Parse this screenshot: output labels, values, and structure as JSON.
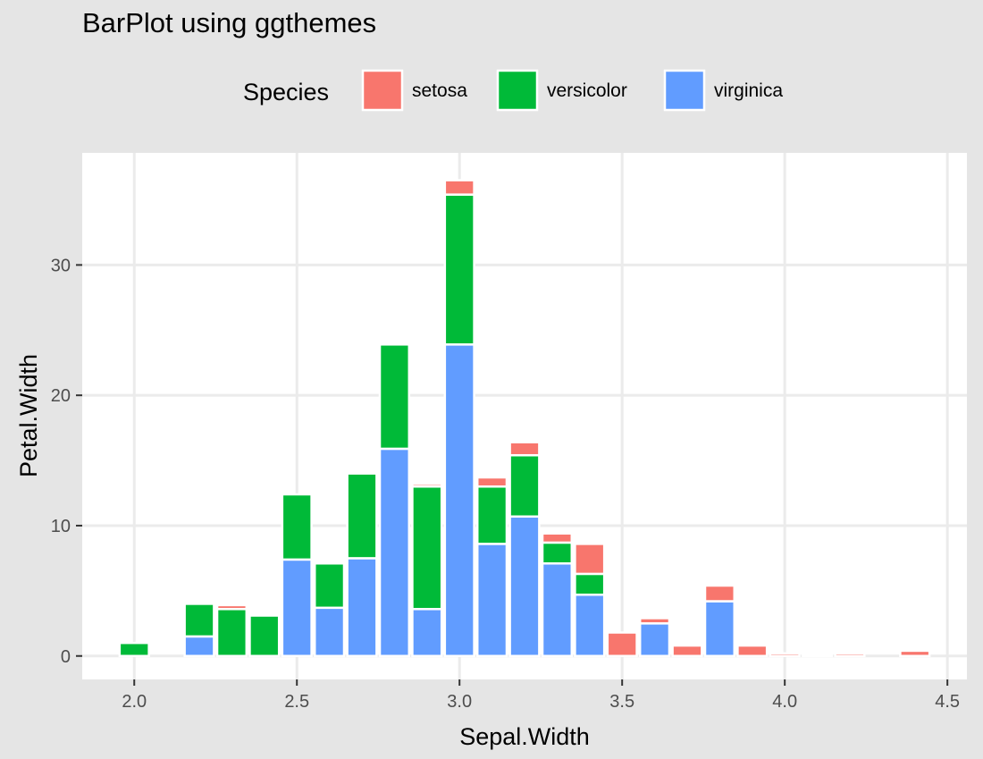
{
  "chart_data": {
    "type": "bar",
    "stacked": true,
    "title": "BarPlot using ggthemes",
    "xlabel": "Sepal.Width",
    "ylabel": "Petal.Width",
    "xlim": [
      1.84,
      4.56
    ],
    "ylim": [
      -1.8,
      38.6
    ],
    "x_ticks": [
      2.0,
      2.5,
      3.0,
      3.5,
      4.0,
      4.5
    ],
    "x_tick_labels": [
      "2.0",
      "2.5",
      "3.0",
      "3.5",
      "4.0",
      "4.5"
    ],
    "y_ticks": [
      0,
      10,
      20,
      30
    ],
    "y_tick_labels": [
      "0",
      "10",
      "20",
      "30"
    ],
    "grid": true,
    "legend": {
      "title": "Species",
      "placement": "top"
    },
    "colors": {
      "setosa": "#f8766d",
      "versicolor": "#00ba38",
      "virginica": "#619cff"
    },
    "x": [
      2.0,
      2.2,
      2.3,
      2.4,
      2.5,
      2.6,
      2.7,
      2.8,
      2.9,
      3.0,
      3.1,
      3.2,
      3.3,
      3.4,
      3.5,
      3.6,
      3.7,
      3.8,
      3.9,
      4.0,
      4.1,
      4.2,
      4.4
    ],
    "series": [
      {
        "name": "virginica",
        "values": [
          0,
          1.5,
          0,
          0,
          7.4,
          3.7,
          7.5,
          15.9,
          3.6,
          23.9,
          8.6,
          10.7,
          7.1,
          4.7,
          0,
          2.5,
          0,
          4.2,
          0,
          0,
          0,
          0,
          0
        ]
      },
      {
        "name": "versicolor",
        "values": [
          1.0,
          2.5,
          3.6,
          3.1,
          5.0,
          3.4,
          6.5,
          8.0,
          9.4,
          11.5,
          4.4,
          4.7,
          1.6,
          1.6,
          0,
          0,
          0,
          0,
          0,
          0,
          0,
          0,
          0
        ]
      },
      {
        "name": "setosa",
        "values": [
          0,
          0,
          0.3,
          0,
          0,
          0,
          0,
          0,
          0.2,
          1.1,
          0.7,
          1.0,
          0.7,
          2.3,
          1.8,
          0.4,
          0.8,
          1.2,
          0.8,
          0.2,
          0.1,
          0.2,
          0.4
        ]
      }
    ]
  }
}
